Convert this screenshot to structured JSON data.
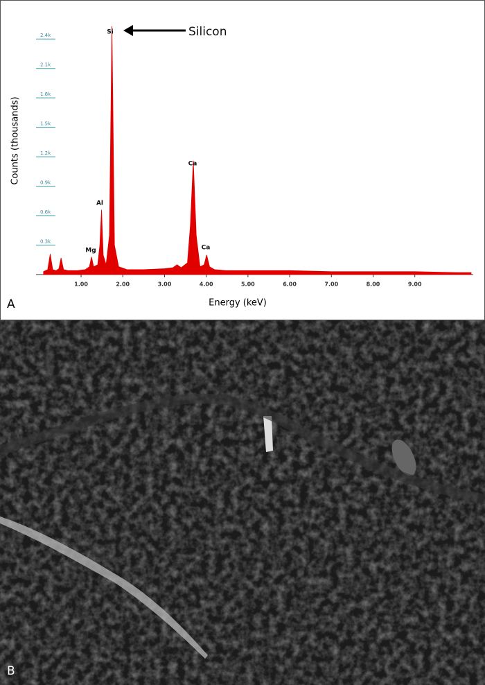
{
  "chart_data": {
    "type": "area",
    "xlabel": "Energy (keV)",
    "ylabel": "Counts (thousands)",
    "x": [
      0.1,
      0.2,
      0.26,
      0.32,
      0.4,
      0.47,
      0.52,
      0.58,
      0.7,
      0.9,
      1.1,
      1.2,
      1.25,
      1.3,
      1.4,
      1.45,
      1.49,
      1.53,
      1.6,
      1.68,
      1.74,
      1.8,
      1.9,
      2.1,
      2.5,
      3.0,
      3.2,
      3.3,
      3.4,
      3.55,
      3.62,
      3.69,
      3.76,
      3.85,
      3.95,
      4.01,
      4.08,
      4.2,
      4.5,
      5.0,
      6.0,
      7.0,
      8.0,
      9.0,
      10.0,
      10.35
    ],
    "values": [
      0.03,
      0.05,
      0.21,
      0.05,
      0.04,
      0.06,
      0.17,
      0.05,
      0.04,
      0.04,
      0.05,
      0.08,
      0.18,
      0.08,
      0.1,
      0.3,
      0.66,
      0.2,
      0.1,
      0.4,
      2.53,
      0.3,
      0.08,
      0.05,
      0.05,
      0.06,
      0.07,
      0.1,
      0.07,
      0.12,
      0.5,
      1.16,
      0.4,
      0.08,
      0.1,
      0.2,
      0.08,
      0.05,
      0.04,
      0.04,
      0.04,
      0.03,
      0.03,
      0.03,
      0.02,
      0.02
    ],
    "color": "#e00000",
    "xlim": [
      -0.08,
      10.4
    ],
    "ylim": [
      0,
      2.55
    ],
    "xticks": [
      {
        "value": 1,
        "label": "1.00"
      },
      {
        "value": 2,
        "label": "2.00"
      },
      {
        "value": 3,
        "label": "3.00"
      },
      {
        "value": 4,
        "label": "4.00"
      },
      {
        "value": 5,
        "label": "5.00"
      },
      {
        "value": 6,
        "label": "6.00"
      },
      {
        "value": 7,
        "label": "7.00"
      },
      {
        "value": 8,
        "label": "8.00"
      },
      {
        "value": 9,
        "label": "9.00"
      }
    ],
    "yticks": [
      {
        "value": 0.3,
        "label": "0.3k"
      },
      {
        "value": 0.6,
        "label": "0.6k"
      },
      {
        "value": 0.9,
        "label": "0.9k"
      },
      {
        "value": 1.2,
        "label": "1.2k"
      },
      {
        "value": 1.5,
        "label": "1.5k"
      },
      {
        "value": 1.8,
        "label": "1.8k"
      },
      {
        "value": 2.1,
        "label": "2.1k"
      },
      {
        "value": 2.4,
        "label": "2.4k"
      }
    ],
    "annotations": [
      "Si",
      "Al",
      "Mg",
      "Ca",
      "Ca",
      "Silicon"
    ],
    "panel_labels": [
      "A",
      "B"
    ]
  }
}
